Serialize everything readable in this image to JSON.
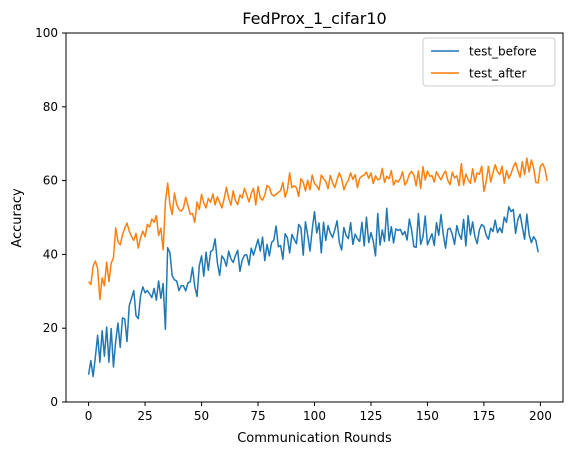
{
  "chart_data": {
    "type": "line",
    "title": "FedProx_1_cifar10",
    "xlabel": "Communication Rounds",
    "ylabel": "Accuracy",
    "xlim": [
      -10,
      210
    ],
    "ylim": [
      0,
      100
    ],
    "xticks": [
      0,
      25,
      50,
      75,
      100,
      125,
      150,
      175,
      200
    ],
    "yticks": [
      0,
      20,
      40,
      60,
      80,
      100
    ],
    "grid": false,
    "legend_position": "top-right",
    "series": [
      {
        "name": "test_before",
        "color": "#1f77b4",
        "values": [
          7.4,
          11.2,
          6.9,
          12.2,
          18.1,
          10.8,
          19.3,
          12.4,
          20.3,
          10.8,
          19.9,
          9.5,
          16.4,
          21.4,
          14.8,
          22.8,
          22.5,
          16.4,
          26.1,
          28.1,
          30.2,
          23.4,
          22.6,
          28.7,
          31.2,
          29.6,
          30.2,
          29.3,
          28.3,
          30.8,
          27.6,
          32.8,
          28.1,
          32.1,
          19.7,
          41.8,
          40.5,
          34.2,
          33.1,
          32.8,
          30.2,
          31.5,
          31.5,
          30.1,
          32.3,
          32.6,
          36.5,
          31.3,
          28.6,
          36.9,
          39.6,
          34.1,
          40.6,
          35.7,
          40.7,
          41.2,
          44.2,
          37.8,
          34.3,
          39.6,
          38.7,
          36.8,
          40.9,
          38.8,
          37.8,
          39.7,
          41.1,
          35.4,
          38.5,
          39.8,
          39.9,
          37.1,
          41.7,
          39.8,
          41.9,
          44.1,
          40.9,
          44.7,
          38.3,
          42.7,
          39.6,
          43.2,
          43.9,
          47.7,
          42.1,
          42.4,
          38.7,
          45.6,
          44.5,
          40.4,
          45.4,
          44.1,
          42.9,
          48.1,
          47.2,
          39.8,
          48.8,
          45.2,
          40.9,
          46.8,
          51.6,
          45.8,
          48.5,
          40.4,
          48.7,
          43.8,
          47.8,
          45.8,
          44.6,
          46.7,
          49.1,
          43.2,
          41.2,
          47.3,
          45.1,
          44.3,
          48.6,
          42.7,
          45.5,
          44.2,
          43.5,
          48.7,
          42.3,
          50.1,
          43.2,
          45.9,
          43.6,
          39.6,
          51.1,
          42.5,
          46.6,
          43.5,
          52.5,
          43.7,
          47.5,
          43.1,
          46.9,
          46.5,
          46.8,
          45.3,
          46.2,
          43.9,
          49.6,
          46.5,
          42.1,
          41.9,
          51.1,
          42.7,
          44.7,
          50.4,
          42.6,
          44.1,
          45.6,
          42.4,
          48.6,
          45.2,
          50.8,
          45.4,
          41.7,
          46.8,
          47.1,
          45.4,
          42.7,
          47.8,
          45.5,
          44.1,
          49.5,
          42.3,
          50.5,
          45.3,
          48.8,
          44.8,
          42.9,
          46.7,
          48.1,
          47.6,
          45.2,
          44.1,
          47.1,
          46.2,
          49.3,
          45.9,
          47.2,
          45.9,
          50.1,
          48.7,
          52.9,
          51.6,
          52.2,
          45.7,
          49.4,
          50.9,
          47.4,
          44.1,
          50.9,
          45.4,
          43.2,
          44.8,
          43.8,
          40.6
        ]
      },
      {
        "name": "test_after",
        "color": "#ff7f0e",
        "values": [
          32.6,
          31.8,
          36.8,
          38.2,
          36.2,
          27.8,
          33.6,
          31.5,
          37.9,
          32.6,
          37.6,
          39.1,
          47.2,
          43.5,
          42.6,
          45.3,
          47.1,
          48.5,
          46.3,
          44.9,
          43.8,
          45.7,
          41.7,
          44.5,
          46.3,
          44.8,
          48.1,
          47.4,
          49.6,
          48.7,
          50.5,
          45.1,
          47.1,
          41.2,
          54.2,
          59.3,
          53.5,
          50.8,
          56.6,
          53.5,
          52.2,
          51.7,
          52.6,
          55.5,
          53.2,
          50.9,
          51.1,
          48.7,
          54.2,
          52.2,
          56.3,
          53.9,
          52.6,
          55.2,
          54.1,
          56.4,
          53.4,
          55.6,
          54.1,
          52.6,
          55.1,
          58.2,
          55.3,
          53.3,
          57.2,
          54.6,
          53.5,
          56.1,
          55.3,
          57.9,
          56.1,
          54.2,
          56.6,
          57.9,
          53.4,
          58.4,
          55.3,
          54.7,
          56.1,
          58.7,
          58.2,
          56.3,
          55.8,
          56.3,
          56.8,
          57.3,
          59.5,
          55.5,
          57.4,
          62.1,
          58.1,
          58.6,
          58.1,
          55.7,
          60.5,
          59.6,
          57.2,
          60.1,
          57.5,
          61.5,
          59.2,
          58.6,
          57.5,
          61.5,
          60.5,
          59.8,
          57.8,
          61.4,
          59.4,
          58.1,
          60.3,
          62.1,
          60.6,
          57.5,
          59.1,
          60.1,
          62.1,
          60.3,
          61.6,
          58.1,
          60.6,
          61.2,
          61.5,
          62.3,
          60.6,
          62.1,
          59.2,
          61.3,
          60.2,
          60.5,
          63.3,
          59.5,
          61.2,
          60.5,
          62.7,
          58.8,
          60.1,
          59.6,
          60.6,
          62.4,
          58.8,
          59.8,
          61.8,
          62.5,
          61.5,
          58.6,
          62.6,
          57.9,
          63.8,
          60.2,
          62.6,
          61.2,
          61.3,
          59.6,
          62.4,
          61.2,
          60.2,
          61.6,
          62.6,
          60.1,
          58.9,
          62.3,
          60.7,
          61.3,
          58.6,
          64.6,
          58.8,
          61.8,
          60.2,
          59.3,
          63.2,
          59.6,
          62.1,
          61.7,
          63.9,
          57.1,
          59.8,
          63.9,
          59.6,
          62.1,
          64.3,
          62.4,
          61.6,
          63.9,
          59.3,
          62.7,
          60.6,
          61.9,
          63.7,
          64.9,
          62.8,
          60.9,
          65.1,
          61.6,
          66.1,
          62.3,
          65.6,
          63.4,
          59.5,
          59.4,
          63.9,
          64.6,
          63.2,
          59.9
        ]
      }
    ]
  }
}
